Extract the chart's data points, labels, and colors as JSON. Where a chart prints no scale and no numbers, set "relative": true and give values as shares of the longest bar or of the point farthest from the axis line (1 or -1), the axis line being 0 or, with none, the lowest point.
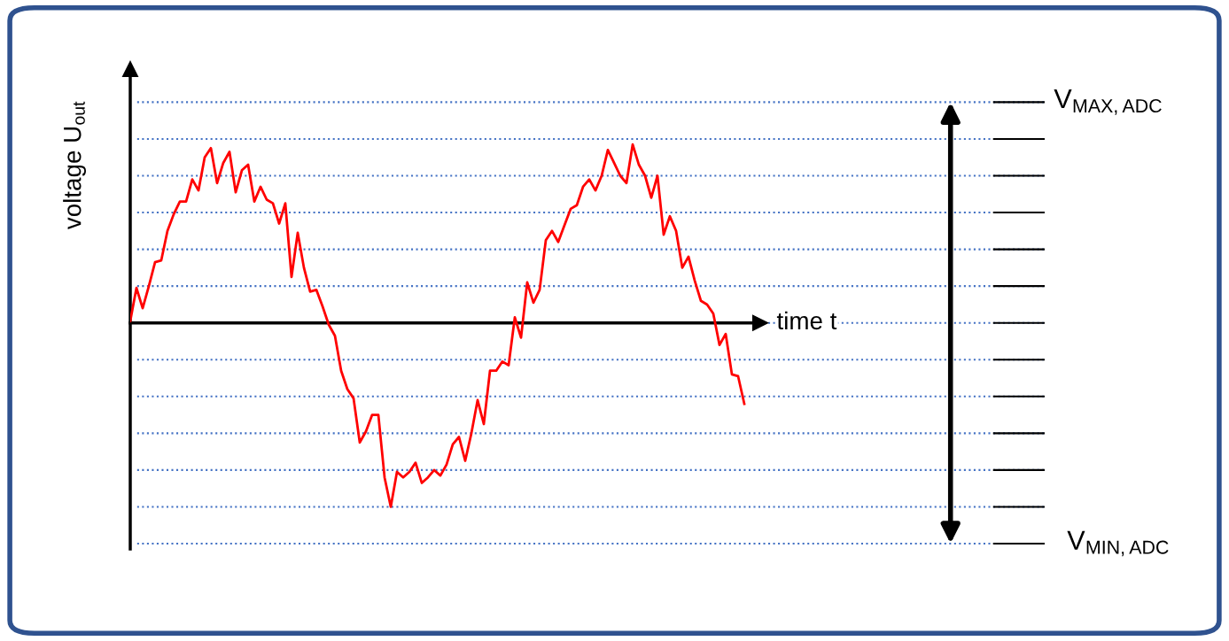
{
  "chart_data": {
    "type": "line",
    "relative": true,
    "xlabel": "time t",
    "ylabel": "voltage U$_{out}$",
    "categories": [
      null,
      null,
      null,
      null,
      null,
      null,
      null,
      null,
      null,
      null,
      null,
      null,
      null,
      null,
      null,
      null,
      null,
      null,
      null,
      null,
      null,
      null,
      null,
      null,
      null,
      null,
      null,
      null,
      null,
      null,
      null,
      null,
      null,
      null,
      null,
      null,
      null,
      null,
      null,
      null,
      null,
      null,
      null,
      null,
      null,
      null,
      null,
      null,
      null,
      null,
      null,
      null,
      null,
      null,
      null,
      null,
      null,
      null,
      null,
      null,
      null,
      null,
      null,
      null,
      null,
      null,
      null,
      null,
      null,
      null,
      null,
      null,
      null,
      null,
      null,
      null,
      null,
      null,
      null,
      null,
      null,
      null,
      null,
      null,
      null,
      null,
      null,
      null,
      null,
      null,
      null,
      null,
      null,
      null,
      null,
      null,
      null,
      null,
      null,
      null
    ],
    "series": [
      {
        "color": "#ff0000",
        "values": [
          0.01,
          0.19,
          0.08,
          0.2,
          0.33,
          0.34,
          0.5,
          0.59,
          0.66,
          0.66,
          0.78,
          0.72,
          0.9,
          0.95,
          0.76,
          0.87,
          0.93,
          0.71,
          0.83,
          0.86,
          0.66,
          0.74,
          0.67,
          0.65,
          0.54,
          0.65,
          0.25,
          0.49,
          0.3,
          0.17,
          0.18,
          0.09,
          -0.01,
          -0.07,
          -0.26,
          -0.36,
          -0.41,
          -0.65,
          -0.59,
          -0.5,
          -0.5,
          -0.84,
          -1.0,
          -0.81,
          -0.84,
          -0.81,
          -0.76,
          -0.87,
          -0.84,
          -0.8,
          -0.83,
          -0.77,
          -0.66,
          -0.62,
          -0.75,
          -0.6,
          -0.42,
          -0.55,
          -0.26,
          -0.26,
          -0.21,
          -0.23,
          0.03,
          -0.08,
          0.22,
          0.11,
          0.18,
          0.45,
          0.5,
          0.44,
          0.53,
          0.62,
          0.64,
          0.74,
          0.78,
          0.72,
          0.8,
          0.94,
          0.87,
          0.8,
          0.76,
          0.97,
          0.86,
          0.8,
          0.68,
          0.8,
          0.48,
          0.58,
          0.5,
          0.3,
          0.36,
          0.23,
          0.12,
          0.1,
          0.05,
          -0.12,
          -0.06,
          -0.28,
          -0.29,
          -0.44
        ]
      }
    ],
    "ref_lines": [
      {
        "axis": "y",
        "value": 1.2,
        "label": "V$_{MAX,ADC}$",
        "color": "#4472c4",
        "line_style": "dotted"
      },
      {
        "axis": "y",
        "value": 1.0,
        "color": "#4472c4",
        "line_style": "dotted"
      },
      {
        "axis": "y",
        "value": 0.8,
        "color": "#4472c4",
        "line_style": "dotted"
      },
      {
        "axis": "y",
        "value": 0.6,
        "color": "#4472c4",
        "line_style": "dotted"
      },
      {
        "axis": "y",
        "value": 0.4,
        "color": "#4472c4",
        "line_style": "dotted"
      },
      {
        "axis": "y",
        "value": 0.2,
        "color": "#4472c4",
        "line_style": "dotted"
      },
      {
        "axis": "y",
        "value": 0.0,
        "color": "#4472c4",
        "line_style": "dotted"
      },
      {
        "axis": "y",
        "value": -0.2,
        "color": "#4472c4",
        "line_style": "dotted"
      },
      {
        "axis": "y",
        "value": -0.4,
        "color": "#4472c4",
        "line_style": "dotted"
      },
      {
        "axis": "y",
        "value": -0.6,
        "color": "#4472c4",
        "line_style": "dotted"
      },
      {
        "axis": "y",
        "value": -0.8,
        "color": "#4472c4",
        "line_style": "dotted"
      },
      {
        "axis": "y",
        "value": -1.0,
        "color": "#4472c4",
        "line_style": "dotted"
      },
      {
        "axis": "y",
        "value": -1.2,
        "label": "V$_{MIN,ADC}$",
        "color": "#4472c4",
        "line_style": "dotted"
      }
    ]
  }
}
